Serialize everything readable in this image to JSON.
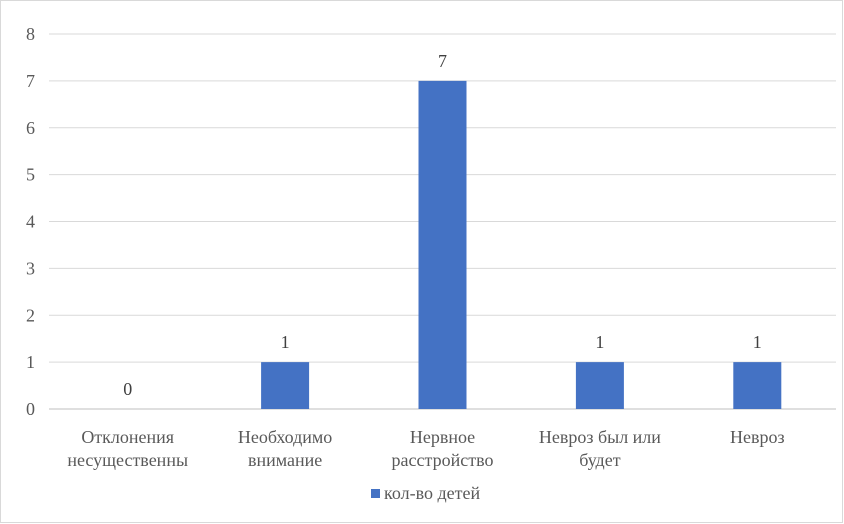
{
  "chart_data": {
    "type": "bar",
    "categories": [
      [
        "Отклонения",
        "несущественны"
      ],
      [
        "Необходимо",
        "внимание"
      ],
      [
        "Нервное",
        "расстройство"
      ],
      [
        "Невроз был или",
        "будет"
      ],
      [
        "Невроз"
      ]
    ],
    "series": [
      {
        "name": "кол-во детей",
        "values": [
          0,
          1,
          7,
          1,
          1
        ],
        "color": "#4472c4"
      }
    ],
    "yticks": [
      "0",
      "1",
      "2",
      "3",
      "4",
      "5",
      "6",
      "7",
      "8"
    ],
    "ylim": [
      0,
      8
    ],
    "grid": true,
    "data_labels": [
      "0",
      "1",
      "7",
      "1",
      "1"
    ],
    "legend": "bottom"
  }
}
